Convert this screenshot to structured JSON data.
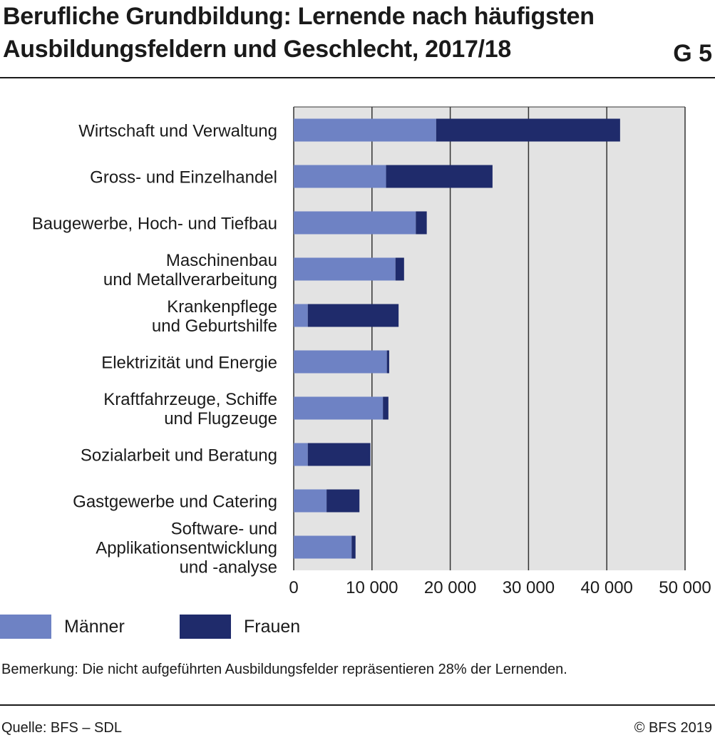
{
  "header": {
    "title_line1": "Berufliche Grundbildung: Lernende nach häufigsten",
    "title_line2": "Ausbildungsfeldern und Geschlecht, 2017/18",
    "code": "G 5"
  },
  "colors": {
    "maenner": "#6e82c4",
    "frauen": "#1f2b6b",
    "plot_bg": "#e3e3e3",
    "grid": "#333333"
  },
  "chart_data": {
    "type": "bar",
    "orientation": "horizontal",
    "stacked": true,
    "categories": [
      [
        "Wirtschaft und Verwaltung"
      ],
      [
        "Gross- und Einzelhandel"
      ],
      [
        "Baugewerbe, Hoch- und Tiefbau"
      ],
      [
        "Maschinenbau",
        "und Metallverarbeitung"
      ],
      [
        "Krankenpflege",
        "und Geburtshilfe"
      ],
      [
        "Elektrizität und Energie"
      ],
      [
        "Kraftfahrzeuge, Schiffe",
        "und Flugzeuge"
      ],
      [
        "Sozialarbeit und Beratung"
      ],
      [
        "Gastgewerbe und Catering"
      ],
      [
        "Software- und",
        "Applikationsentwicklung",
        "und -analyse"
      ]
    ],
    "series": [
      {
        "name": "Männer",
        "values": [
          18200,
          11800,
          15600,
          13000,
          1800,
          11900,
          11400,
          1800,
          4200,
          7400
        ]
      },
      {
        "name": "Frauen",
        "values": [
          23500,
          13600,
          1400,
          1100,
          11600,
          300,
          700,
          8000,
          4200,
          500
        ]
      }
    ],
    "xlim": [
      0,
      50000
    ],
    "xticks": [
      "0",
      "10 000",
      "20 000",
      "30 000",
      "40 000",
      "50 000"
    ],
    "grid": true,
    "legend": "bottom-left"
  },
  "legend": {
    "maenner": "Männer",
    "frauen": "Frauen"
  },
  "note": "Bemerkung: Die nicht aufgeführten Ausbildungsfelder repräsentieren 28% der Lernenden.",
  "footer": {
    "source": "Quelle: BFS – SDL",
    "copyright": "© BFS 2019"
  }
}
